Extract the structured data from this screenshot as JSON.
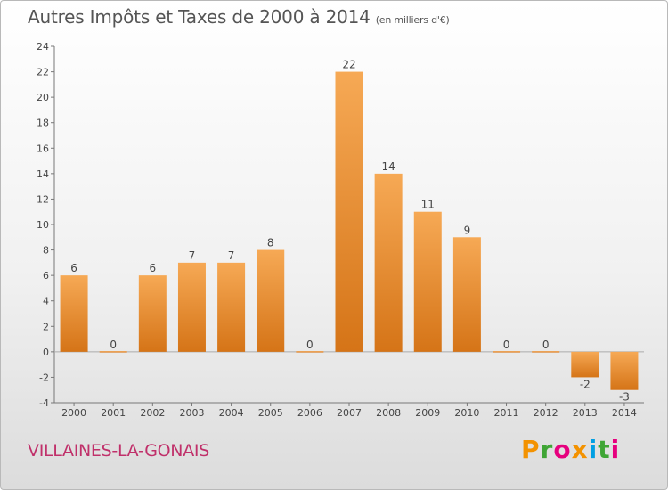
{
  "header": {
    "title": "Autres Impôts et Taxes de 2000 à 2014",
    "subtitle": "(en milliers d'€)"
  },
  "footer": {
    "commune": "VILLAINES-LA-GONAIS",
    "brand": "Proxiti"
  },
  "colors": {
    "bar_light": "#f6a955",
    "bar_dark": "#d57417",
    "commune_text": "#c0306a"
  },
  "chart_data": {
    "type": "bar",
    "title": "Autres Impôts et Taxes de 2000 à 2014",
    "subtitle": "(en milliers d'€)",
    "xlabel": "",
    "ylabel": "",
    "categories": [
      "2000",
      "2001",
      "2002",
      "2003",
      "2004",
      "2005",
      "2006",
      "2007",
      "2008",
      "2009",
      "2010",
      "2011",
      "2012",
      "2013",
      "2014"
    ],
    "values": [
      6,
      0,
      6,
      7,
      7,
      8,
      0,
      22,
      14,
      11,
      9,
      0,
      0,
      -2,
      -3
    ],
    "ylim": [
      -4,
      24
    ],
    "yticks": [
      -4,
      -2,
      0,
      2,
      4,
      6,
      8,
      10,
      12,
      14,
      16,
      18,
      20,
      22,
      24
    ],
    "grid": false,
    "legend": "none"
  }
}
